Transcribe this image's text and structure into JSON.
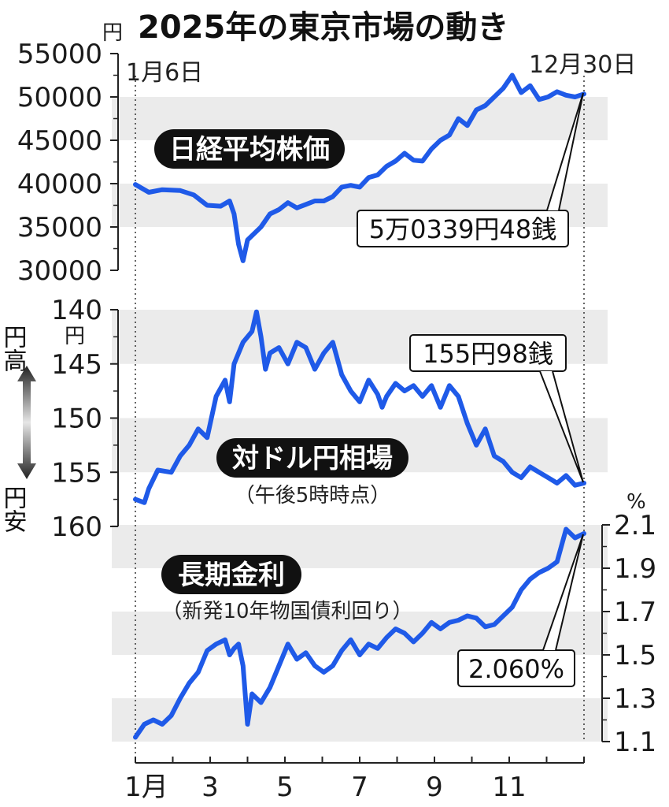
{
  "title": "2025年の東京市場の動き",
  "start_label": "1月6日",
  "end_label": "12月30日",
  "colors": {
    "line": "#1f5ae8",
    "band": "#ebebeb",
    "pill": "#111111"
  },
  "chart_data": [
    {
      "type": "line",
      "title": "日経平均株価",
      "unit": "円",
      "yticks": [
        "55000",
        "50000",
        "45000",
        "40000",
        "35000",
        "30000"
      ],
      "ylim": [
        30000,
        55000
      ],
      "callout": "5万0339円48銭",
      "x": [
        0.0,
        0.03,
        0.06,
        0.1,
        0.13,
        0.16,
        0.19,
        0.21,
        0.22,
        0.23,
        0.24,
        0.25,
        0.26,
        0.28,
        0.3,
        0.32,
        0.34,
        0.36,
        0.38,
        0.4,
        0.42,
        0.44,
        0.46,
        0.48,
        0.5,
        0.52,
        0.54,
        0.56,
        0.58,
        0.6,
        0.62,
        0.64,
        0.66,
        0.68,
        0.7,
        0.72,
        0.74,
        0.76,
        0.78,
        0.8,
        0.82,
        0.84,
        0.86,
        0.88,
        0.9,
        0.92,
        0.94,
        0.96,
        0.98,
        1.0
      ],
      "y": [
        39900,
        39000,
        39300,
        39200,
        38700,
        37500,
        37400,
        38000,
        36500,
        33000,
        31100,
        33500,
        34000,
        35000,
        36500,
        37000,
        37800,
        37200,
        37600,
        38000,
        38000,
        38500,
        39600,
        39800,
        39600,
        40700,
        41000,
        42000,
        42600,
        43500,
        42700,
        42600,
        44000,
        45000,
        45600,
        47500,
        46700,
        48500,
        49000,
        50000,
        51000,
        52500,
        50500,
        51300,
        49700,
        50000,
        50600,
        50200,
        50000,
        50339
      ]
    },
    {
      "type": "line",
      "title": "対ドル円相場",
      "subtitle": "（午後5時時点）",
      "unit": "円",
      "reversed": true,
      "yticks": [
        "140",
        "145",
        "150",
        "155",
        "160"
      ],
      "ylim": [
        140,
        160
      ],
      "callout": "155円98銭",
      "side_top": "円高",
      "side_bottom": "円安",
      "x": [
        0.0,
        0.02,
        0.03,
        0.05,
        0.08,
        0.1,
        0.12,
        0.14,
        0.16,
        0.18,
        0.2,
        0.21,
        0.22,
        0.24,
        0.26,
        0.27,
        0.28,
        0.29,
        0.3,
        0.32,
        0.34,
        0.36,
        0.38,
        0.4,
        0.42,
        0.44,
        0.46,
        0.48,
        0.5,
        0.52,
        0.54,
        0.55,
        0.56,
        0.58,
        0.6,
        0.62,
        0.64,
        0.66,
        0.68,
        0.7,
        0.72,
        0.74,
        0.76,
        0.78,
        0.8,
        0.82,
        0.84,
        0.86,
        0.88,
        0.9,
        0.92,
        0.94,
        0.96,
        0.98,
        1.0
      ],
      "y": [
        157.5,
        157.8,
        156.5,
        154.8,
        155.0,
        153.5,
        152.5,
        151.0,
        151.8,
        148.0,
        146.5,
        148.5,
        145.0,
        143.0,
        142.0,
        140.2,
        142.5,
        145.5,
        144.0,
        143.5,
        145.0,
        143.0,
        143.5,
        145.5,
        144.0,
        143.0,
        146.0,
        147.5,
        148.5,
        146.5,
        147.8,
        149.0,
        148.0,
        146.8,
        147.5,
        147.0,
        148.0,
        147.0,
        149.0,
        147.0,
        148.0,
        150.5,
        152.5,
        151.0,
        153.5,
        154.0,
        155.0,
        155.5,
        154.5,
        155.0,
        155.5,
        156.0,
        155.3,
        156.2,
        156.0
      ]
    },
    {
      "type": "line",
      "title": "長期金利",
      "subtitle": "（新発10年物国債利回り）",
      "unit": "%",
      "yticks": [
        "2.1",
        "1.9",
        "1.7",
        "1.5",
        "1.3",
        "1.1"
      ],
      "ylim": [
        1.1,
        2.1
      ],
      "callout": "2.060%",
      "x": [
        0.0,
        0.02,
        0.04,
        0.06,
        0.08,
        0.1,
        0.12,
        0.14,
        0.16,
        0.18,
        0.2,
        0.21,
        0.22,
        0.23,
        0.24,
        0.25,
        0.26,
        0.28,
        0.3,
        0.32,
        0.34,
        0.36,
        0.38,
        0.4,
        0.42,
        0.44,
        0.46,
        0.48,
        0.5,
        0.52,
        0.54,
        0.56,
        0.58,
        0.6,
        0.62,
        0.64,
        0.66,
        0.68,
        0.7,
        0.72,
        0.74,
        0.76,
        0.78,
        0.8,
        0.82,
        0.84,
        0.86,
        0.88,
        0.9,
        0.92,
        0.94,
        0.96,
        0.98,
        1.0
      ],
      "y": [
        1.12,
        1.18,
        1.2,
        1.18,
        1.22,
        1.3,
        1.37,
        1.42,
        1.52,
        1.55,
        1.57,
        1.5,
        1.53,
        1.55,
        1.45,
        1.18,
        1.32,
        1.28,
        1.35,
        1.45,
        1.55,
        1.48,
        1.51,
        1.45,
        1.42,
        1.45,
        1.52,
        1.57,
        1.5,
        1.55,
        1.53,
        1.58,
        1.62,
        1.6,
        1.56,
        1.6,
        1.65,
        1.62,
        1.65,
        1.66,
        1.68,
        1.67,
        1.63,
        1.64,
        1.68,
        1.72,
        1.8,
        1.85,
        1.88,
        1.9,
        1.93,
        2.08,
        2.04,
        2.06
      ]
    }
  ],
  "xaxis_ticks": [
    "1月",
    "3",
    "5",
    "7",
    "9",
    "11"
  ]
}
